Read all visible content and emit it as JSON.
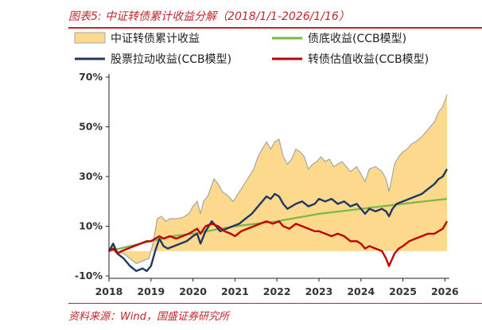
{
  "header": {
    "title": "图表5:  中证转债累计收益分解（2018/1/1-2026/1/16）"
  },
  "footer": {
    "source": "资料来源：Wind，国盛证券研究所"
  },
  "chart_data": {
    "type": "area",
    "title": "图表5:  中证转债累计收益分解（2018/1/1-2026/1/16）",
    "xlabel": "",
    "ylabel": "",
    "x_ticks": [
      "2018",
      "2019",
      "2020",
      "2021",
      "2022",
      "2023",
      "2024",
      "2025",
      "2026"
    ],
    "y_ticks": [
      "-10%",
      "10%",
      "30%",
      "50%",
      "70%"
    ],
    "y_tick_values": [
      -10,
      10,
      30,
      50,
      70
    ],
    "ylim": [
      -10,
      70
    ],
    "xlim": [
      2018.0,
      2026.05
    ],
    "grid": false,
    "legend": "top",
    "colors": {
      "total": "#fcd98c",
      "total_edge": "#a6a6a6",
      "bond_floor": "#7ab648",
      "equity": "#1f3864",
      "valuation": "#c00000"
    },
    "series": [
      {
        "name": "中证转债累计收益",
        "style": "area",
        "points": [
          [
            2018.0,
            0
          ],
          [
            2018.1,
            3
          ],
          [
            2018.2,
            0
          ],
          [
            2018.35,
            -1
          ],
          [
            2018.5,
            -3
          ],
          [
            2018.65,
            -5
          ],
          [
            2018.8,
            -4
          ],
          [
            2018.95,
            -3
          ],
          [
            2019.05,
            3
          ],
          [
            2019.15,
            13
          ],
          [
            2019.25,
            14
          ],
          [
            2019.35,
            12
          ],
          [
            2019.45,
            13
          ],
          [
            2019.6,
            13
          ],
          [
            2019.75,
            13.5
          ],
          [
            2019.9,
            15
          ],
          [
            2020.0,
            18
          ],
          [
            2020.1,
            20
          ],
          [
            2020.18,
            15
          ],
          [
            2020.25,
            20
          ],
          [
            2020.35,
            22
          ],
          [
            2020.5,
            29
          ],
          [
            2020.6,
            27
          ],
          [
            2020.7,
            24
          ],
          [
            2020.85,
            22
          ],
          [
            2020.95,
            20
          ],
          [
            2021.0,
            21
          ],
          [
            2021.15,
            25
          ],
          [
            2021.3,
            29
          ],
          [
            2021.45,
            33
          ],
          [
            2021.55,
            38
          ],
          [
            2021.65,
            41
          ],
          [
            2021.75,
            44
          ],
          [
            2021.85,
            41
          ],
          [
            2021.95,
            44
          ],
          [
            2022.05,
            45
          ],
          [
            2022.15,
            38
          ],
          [
            2022.25,
            35
          ],
          [
            2022.35,
            37
          ],
          [
            2022.45,
            41
          ],
          [
            2022.55,
            40
          ],
          [
            2022.65,
            38
          ],
          [
            2022.75,
            33
          ],
          [
            2022.85,
            35
          ],
          [
            2022.95,
            36
          ],
          [
            2023.05,
            38
          ],
          [
            2023.15,
            36
          ],
          [
            2023.25,
            37
          ],
          [
            2023.35,
            34
          ],
          [
            2023.45,
            35
          ],
          [
            2023.55,
            36
          ],
          [
            2023.65,
            34
          ],
          [
            2023.75,
            32
          ],
          [
            2023.9,
            34
          ],
          [
            2024.0,
            31
          ],
          [
            2024.1,
            28
          ],
          [
            2024.2,
            33
          ],
          [
            2024.35,
            34
          ],
          [
            2024.5,
            32
          ],
          [
            2024.6,
            29
          ],
          [
            2024.67,
            24
          ],
          [
            2024.72,
            28
          ],
          [
            2024.8,
            35
          ],
          [
            2024.9,
            38
          ],
          [
            2025.0,
            40
          ],
          [
            2025.1,
            41
          ],
          [
            2025.2,
            43
          ],
          [
            2025.3,
            44
          ],
          [
            2025.45,
            46
          ],
          [
            2025.6,
            49
          ],
          [
            2025.75,
            52
          ],
          [
            2025.85,
            56
          ],
          [
            2025.95,
            58
          ],
          [
            2026.05,
            63
          ]
        ]
      },
      {
        "name": "债底收益(CCB模型)",
        "style": "line",
        "points": [
          [
            2018.0,
            0
          ],
          [
            2018.5,
            2
          ],
          [
            2019.0,
            4
          ],
          [
            2019.5,
            6
          ],
          [
            2020.0,
            7
          ],
          [
            2020.5,
            8.5
          ],
          [
            2021.0,
            10
          ],
          [
            2021.5,
            11
          ],
          [
            2022.0,
            12
          ],
          [
            2022.5,
            13.5
          ],
          [
            2023.0,
            15
          ],
          [
            2023.5,
            16
          ],
          [
            2024.0,
            17
          ],
          [
            2024.5,
            18
          ],
          [
            2025.0,
            19
          ],
          [
            2025.5,
            20
          ],
          [
            2026.05,
            21
          ]
        ]
      },
      {
        "name": "股票拉动收益(CCB模型)",
        "style": "line",
        "points": [
          [
            2018.0,
            0
          ],
          [
            2018.1,
            3
          ],
          [
            2018.2,
            -1
          ],
          [
            2018.35,
            -3
          ],
          [
            2018.5,
            -6
          ],
          [
            2018.65,
            -8
          ],
          [
            2018.8,
            -7
          ],
          [
            2018.9,
            -8
          ],
          [
            2019.0,
            -6
          ],
          [
            2019.1,
            0
          ],
          [
            2019.2,
            5
          ],
          [
            2019.3,
            2
          ],
          [
            2019.4,
            1
          ],
          [
            2019.55,
            2
          ],
          [
            2019.7,
            3
          ],
          [
            2019.85,
            4
          ],
          [
            2020.0,
            6
          ],
          [
            2020.1,
            7
          ],
          [
            2020.18,
            3
          ],
          [
            2020.3,
            8
          ],
          [
            2020.45,
            12
          ],
          [
            2020.55,
            10
          ],
          [
            2020.65,
            8
          ],
          [
            2020.8,
            9
          ],
          [
            2020.95,
            10
          ],
          [
            2021.1,
            11
          ],
          [
            2021.25,
            13
          ],
          [
            2021.4,
            15
          ],
          [
            2021.5,
            17
          ],
          [
            2021.65,
            20
          ],
          [
            2021.75,
            22
          ],
          [
            2021.85,
            21
          ],
          [
            2021.95,
            23
          ],
          [
            2022.05,
            22
          ],
          [
            2022.15,
            19
          ],
          [
            2022.25,
            17
          ],
          [
            2022.35,
            18
          ],
          [
            2022.45,
            19
          ],
          [
            2022.6,
            20
          ],
          [
            2022.75,
            18
          ],
          [
            2022.9,
            19
          ],
          [
            2023.0,
            21
          ],
          [
            2023.15,
            20
          ],
          [
            2023.3,
            21
          ],
          [
            2023.45,
            19
          ],
          [
            2023.6,
            20
          ],
          [
            2023.75,
            18
          ],
          [
            2023.9,
            19
          ],
          [
            2024.0,
            17
          ],
          [
            2024.1,
            15
          ],
          [
            2024.2,
            17
          ],
          [
            2024.35,
            16
          ],
          [
            2024.5,
            17
          ],
          [
            2024.6,
            16
          ],
          [
            2024.67,
            14
          ],
          [
            2024.75,
            17
          ],
          [
            2024.85,
            19
          ],
          [
            2025.0,
            20
          ],
          [
            2025.15,
            21
          ],
          [
            2025.3,
            22
          ],
          [
            2025.45,
            23
          ],
          [
            2025.6,
            25
          ],
          [
            2025.75,
            27
          ],
          [
            2025.85,
            29
          ],
          [
            2025.95,
            30
          ],
          [
            2026.05,
            33
          ]
        ]
      },
      {
        "name": "转债估值收益(CCB模型)",
        "style": "line",
        "points": [
          [
            2018.0,
            0
          ],
          [
            2018.1,
            1
          ],
          [
            2018.2,
            -1
          ],
          [
            2018.3,
            0
          ],
          [
            2018.45,
            1
          ],
          [
            2018.6,
            2
          ],
          [
            2018.75,
            3
          ],
          [
            2018.9,
            4
          ],
          [
            2019.0,
            4
          ],
          [
            2019.1,
            5
          ],
          [
            2019.2,
            6
          ],
          [
            2019.3,
            5
          ],
          [
            2019.45,
            6
          ],
          [
            2019.6,
            5
          ],
          [
            2019.75,
            6
          ],
          [
            2019.9,
            7
          ],
          [
            2020.0,
            8
          ],
          [
            2020.1,
            9
          ],
          [
            2020.18,
            7
          ],
          [
            2020.3,
            10
          ],
          [
            2020.45,
            11
          ],
          [
            2020.6,
            10
          ],
          [
            2020.75,
            8
          ],
          [
            2020.9,
            7
          ],
          [
            2021.0,
            6
          ],
          [
            2021.15,
            8
          ],
          [
            2021.3,
            9
          ],
          [
            2021.45,
            10
          ],
          [
            2021.6,
            11
          ],
          [
            2021.75,
            12
          ],
          [
            2021.9,
            11
          ],
          [
            2022.05,
            12
          ],
          [
            2022.15,
            10
          ],
          [
            2022.3,
            9
          ],
          [
            2022.45,
            11
          ],
          [
            2022.6,
            10
          ],
          [
            2022.75,
            9
          ],
          [
            2022.9,
            8
          ],
          [
            2023.0,
            8
          ],
          [
            2023.15,
            7
          ],
          [
            2023.3,
            6
          ],
          [
            2023.45,
            7
          ],
          [
            2023.6,
            6
          ],
          [
            2023.75,
            4
          ],
          [
            2023.9,
            4
          ],
          [
            2024.0,
            3
          ],
          [
            2024.1,
            1
          ],
          [
            2024.2,
            2
          ],
          [
            2024.35,
            1
          ],
          [
            2024.5,
            0
          ],
          [
            2024.6,
            -3
          ],
          [
            2024.67,
            -6
          ],
          [
            2024.72,
            -4
          ],
          [
            2024.8,
            -1
          ],
          [
            2024.9,
            1
          ],
          [
            2025.0,
            2
          ],
          [
            2025.15,
            4
          ],
          [
            2025.3,
            5
          ],
          [
            2025.45,
            6
          ],
          [
            2025.6,
            7
          ],
          [
            2025.75,
            7
          ],
          [
            2025.85,
            8
          ],
          [
            2025.95,
            9
          ],
          [
            2026.05,
            12
          ]
        ]
      }
    ]
  }
}
